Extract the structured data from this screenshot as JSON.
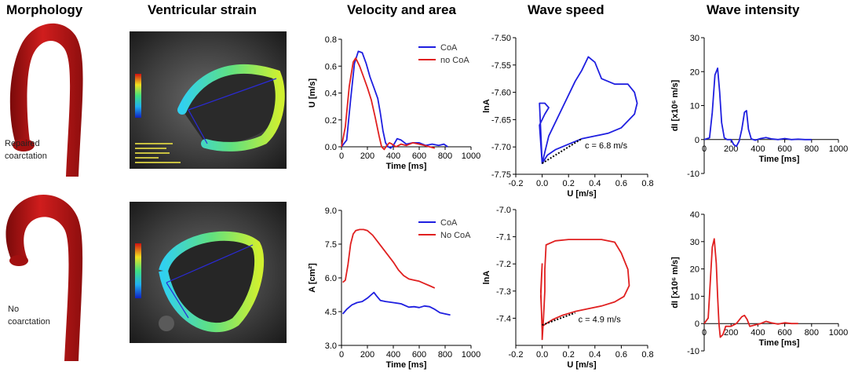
{
  "headers": {
    "morphology": "Morphology",
    "ventricular_strain": "Ventricular strain",
    "velocity_area": "Velocity and area",
    "wave_speed": "Wave speed",
    "wave_intensity": "Wave intensity"
  },
  "morphology": {
    "top_label_1": "Repaired",
    "top_label_2": "coarctation",
    "bottom_label_1": "No",
    "bottom_label_2": "coarctation",
    "aorta_color": "#b81414"
  },
  "colors": {
    "coa": "#1f1fe0",
    "no_coa": "#e02020"
  },
  "chart_data": [
    {
      "id": "velocity",
      "type": "line",
      "ylabel": "U [m/s]",
      "xlabel": "Time [ms]",
      "xlim": [
        0,
        1000
      ],
      "ylim": [
        0,
        0.8
      ],
      "xticks": [
        "0",
        "200",
        "400",
        "600",
        "800",
        "1000"
      ],
      "yticks": [
        "0.0",
        "0.2",
        "0.4",
        "0.6",
        "0.8"
      ],
      "series": [
        {
          "name": "CoA",
          "color": "#1f1fe0",
          "x": [
            0,
            40,
            70,
            100,
            130,
            160,
            190,
            220,
            250,
            280,
            300,
            320,
            340,
            360,
            380,
            400,
            430,
            460,
            500,
            550,
            600,
            650,
            700,
            750,
            790,
            820
          ],
          "y": [
            0.0,
            0.05,
            0.35,
            0.62,
            0.71,
            0.7,
            0.62,
            0.52,
            0.44,
            0.36,
            0.25,
            0.12,
            0.03,
            0.0,
            -0.01,
            0.01,
            0.06,
            0.05,
            0.02,
            0.03,
            0.03,
            0.01,
            0.02,
            0.01,
            0.02,
            0.0
          ]
        },
        {
          "name": "no CoA",
          "color": "#e02020",
          "x": [
            0,
            30,
            60,
            90,
            110,
            140,
            170,
            200,
            230,
            260,
            290,
            310,
            330,
            350,
            370,
            390,
            420,
            460,
            500,
            550,
            600,
            640,
            680,
            720
          ],
          "y": [
            0.0,
            0.15,
            0.45,
            0.63,
            0.66,
            0.6,
            0.52,
            0.44,
            0.35,
            0.22,
            0.08,
            0.0,
            -0.02,
            0.01,
            0.03,
            0.02,
            0.0,
            0.02,
            0.01,
            0.03,
            0.02,
            0.01,
            0.0,
            -0.01
          ]
        }
      ]
    },
    {
      "id": "area",
      "type": "line",
      "ylabel": "A [cm²]",
      "xlabel": "Time [ms]",
      "xlim": [
        0,
        1000
      ],
      "ylim": [
        3.0,
        9.0
      ],
      "xticks": [
        "0",
        "200",
        "400",
        "600",
        "800",
        "1000"
      ],
      "yticks": [
        "3.0",
        "4.5",
        "6.0",
        "7.5",
        "9.0"
      ],
      "series": [
        {
          "name": "CoA",
          "color": "#1f1fe0",
          "x": [
            10,
            40,
            80,
            120,
            160,
            200,
            230,
            250,
            270,
            300,
            340,
            400,
            460,
            520,
            560,
            600,
            640,
            680,
            720,
            760,
            800,
            840
          ],
          "y": [
            4.4,
            4.6,
            4.8,
            4.9,
            4.95,
            5.1,
            5.25,
            5.35,
            5.2,
            5.0,
            4.95,
            4.9,
            4.85,
            4.7,
            4.72,
            4.68,
            4.75,
            4.72,
            4.6,
            4.45,
            4.4,
            4.35
          ]
        },
        {
          "name": "No CoA",
          "color": "#e02020",
          "x": [
            10,
            30,
            50,
            70,
            90,
            110,
            140,
            170,
            200,
            240,
            280,
            320,
            360,
            400,
            440,
            480,
            520,
            560,
            600,
            640,
            680,
            720
          ],
          "y": [
            5.8,
            5.9,
            6.6,
            7.5,
            7.95,
            8.1,
            8.15,
            8.15,
            8.1,
            7.9,
            7.6,
            7.3,
            7.0,
            6.7,
            6.35,
            6.1,
            5.95,
            5.9,
            5.85,
            5.75,
            5.65,
            5.55
          ]
        }
      ]
    },
    {
      "id": "wavespeed_top",
      "type": "line",
      "ylabel": "lnA",
      "xlabel": "U [m/s]",
      "xlim": [
        -0.2,
        0.8
      ],
      "ylim": [
        -7.75,
        -7.5
      ],
      "xticks": [
        "-0.2",
        "0.0",
        "0.2",
        "0.4",
        "0.6",
        "0.8"
      ],
      "yticks": [
        "-7.50",
        "-7.55",
        "-7.60",
        "-7.65",
        "-7.70",
        "-7.75"
      ],
      "annotation": "c = 6.8 m/s",
      "series": [
        {
          "name": "CoA",
          "color": "#1f1fe0",
          "x": [
            0.0,
            0.05,
            0.15,
            0.25,
            0.3,
            0.35,
            0.4,
            0.45,
            0.55,
            0.65,
            0.7,
            0.72,
            0.7,
            0.6,
            0.5,
            0.4,
            0.3,
            0.2,
            0.1,
            0.04,
            0.0,
            -0.02,
            0.02,
            0.05,
            0.02,
            -0.02,
            0.0
          ],
          "y": [
            -7.73,
            -7.68,
            -7.63,
            -7.58,
            -7.56,
            -7.535,
            -7.545,
            -7.575,
            -7.585,
            -7.585,
            -7.6,
            -7.62,
            -7.64,
            -7.665,
            -7.675,
            -7.68,
            -7.685,
            -7.695,
            -7.705,
            -7.715,
            -7.73,
            -7.66,
            -7.64,
            -7.628,
            -7.62,
            -7.62,
            -7.73
          ]
        }
      ],
      "fit": {
        "x": [
          0.0,
          0.3
        ],
        "y": [
          -7.73,
          -7.685
        ]
      }
    },
    {
      "id": "wavespeed_bottom",
      "type": "line",
      "ylabel": "lnA",
      "xlabel": "U [m/s]",
      "xlim": [
        -0.2,
        0.8
      ],
      "ylim": [
        -7.5,
        -7.0
      ],
      "xticks": [
        "-0.2",
        "0.0",
        "0.2",
        "0.4",
        "0.6",
        "0.8"
      ],
      "yticks": [
        "-7.0",
        "-7.1",
        "-7.2",
        "-7.3",
        "-7.4"
      ],
      "annotation": "c = 4.9 m/s",
      "series": [
        {
          "name": "No CoA",
          "color": "#e02020",
          "x": [
            0.0,
            0.01,
            0.02,
            0.02,
            0.03,
            0.1,
            0.2,
            0.35,
            0.45,
            0.55,
            0.6,
            0.65,
            0.66,
            0.62,
            0.55,
            0.45,
            0.35,
            0.25,
            0.15,
            0.08,
            0.03,
            0.0,
            -0.01,
            0.0,
            -0.01,
            0.0,
            0.0
          ],
          "y": [
            -7.48,
            -7.4,
            -7.3,
            -7.22,
            -7.13,
            -7.115,
            -7.11,
            -7.11,
            -7.11,
            -7.12,
            -7.16,
            -7.22,
            -7.28,
            -7.32,
            -7.34,
            -7.355,
            -7.365,
            -7.375,
            -7.39,
            -7.405,
            -7.42,
            -7.43,
            -7.32,
            -7.2,
            -7.3,
            -7.45,
            -7.48
          ]
        }
      ],
      "fit": {
        "x": [
          0.0,
          0.25
        ],
        "y": [
          -7.425,
          -7.38
        ]
      }
    },
    {
      "id": "wi_top",
      "type": "line",
      "ylabel": "dI [x10⁶ m/s]",
      "xlabel": "Time [ms]",
      "xlim": [
        0,
        1000
      ],
      "ylim": [
        -10,
        30
      ],
      "xticks": [
        "0",
        "200",
        "400",
        "600",
        "800",
        "1000"
      ],
      "yticks": [
        "-10",
        "0",
        "10",
        "20",
        "30"
      ],
      "series": [
        {
          "name": "CoA",
          "color": "#1f1fe0",
          "x": [
            0,
            40,
            60,
            80,
            100,
            115,
            130,
            150,
            170,
            200,
            220,
            240,
            260,
            280,
            300,
            315,
            330,
            350,
            380,
            420,
            460,
            500,
            550,
            600,
            650,
            700,
            750,
            800
          ],
          "y": [
            0,
            0.5,
            8,
            19,
            21,
            14,
            5,
            0.5,
            0,
            0,
            -1.5,
            -2,
            -0.5,
            3,
            8,
            8.5,
            3,
            0.2,
            -0.2,
            0.3,
            0.6,
            0.2,
            0,
            0.3,
            0,
            0.1,
            0,
            0
          ]
        }
      ]
    },
    {
      "id": "wi_bottom",
      "type": "line",
      "ylabel": "dI [x10⁶ m/s]",
      "xlabel": "Time [ms]",
      "xlim": [
        0,
        1000
      ],
      "ylim": [
        -10,
        40
      ],
      "xticks": [
        "0",
        "200",
        "400",
        "600",
        "800",
        "1000"
      ],
      "yticks": [
        "-10",
        "0",
        "10",
        "20",
        "30",
        "40"
      ],
      "series": [
        {
          "name": "No CoA",
          "color": "#e02020",
          "x": [
            0,
            30,
            45,
            60,
            75,
            90,
            100,
            110,
            120,
            140,
            160,
            200,
            240,
            280,
            300,
            320,
            340,
            380,
            420,
            460,
            500,
            550,
            600,
            650,
            700
          ],
          "y": [
            0,
            2,
            15,
            28,
            31,
            22,
            10,
            0,
            -5,
            -4,
            -1,
            -1,
            0,
            2.5,
            3,
            1.5,
            -1,
            -0.5,
            0,
            0.8,
            0.3,
            -0.2,
            0.3,
            0,
            0
          ]
        }
      ]
    }
  ]
}
